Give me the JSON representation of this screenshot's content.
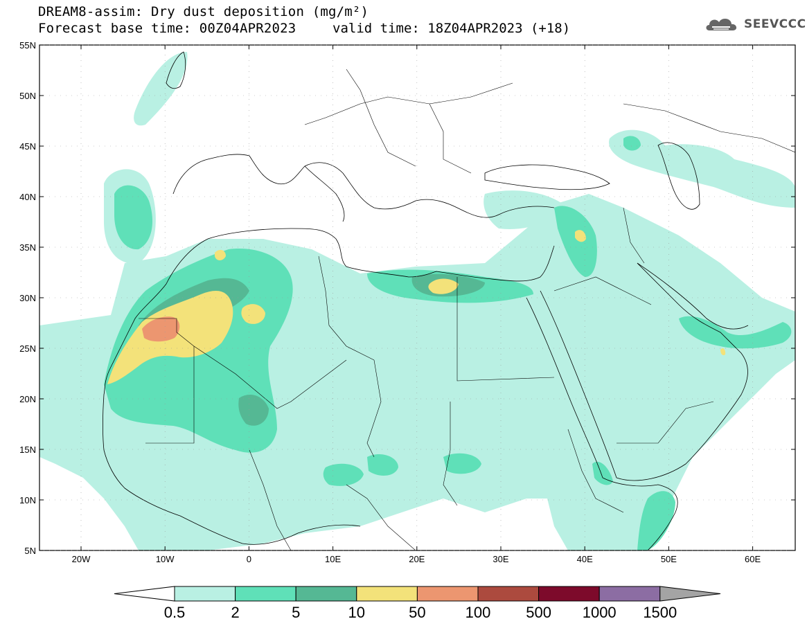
{
  "header": {
    "line1": "DREAM8-assim: Dry dust deposition (mg/m²)",
    "line2": "Forecast base time: 00Z04APR2023",
    "valid": "valid time: 18Z04APR2023 (+18)"
  },
  "logo": {
    "text": "SEEVCCC",
    "icon": "cloud-logo-icon"
  },
  "map": {
    "lat_labels": [
      "55N",
      "50N",
      "45N",
      "40N",
      "35N",
      "30N",
      "25N",
      "20N",
      "15N",
      "10N",
      "5N"
    ],
    "lon_labels": [
      "20W",
      "10W",
      "0",
      "10E",
      "20E",
      "30E",
      "40E",
      "50E",
      "60E"
    ]
  },
  "colorbar": {
    "colors": [
      "#b9f0e3",
      "#5fe0b8",
      "#55b894",
      "#f3e27a",
      "#ec9670",
      "#ac4a3e",
      "#7d0a2b",
      "#8c6da3",
      "#a4a4a4"
    ],
    "labels": [
      "0.5",
      "2",
      "5",
      "10",
      "50",
      "100",
      "500",
      "1000",
      "1500"
    ]
  }
}
